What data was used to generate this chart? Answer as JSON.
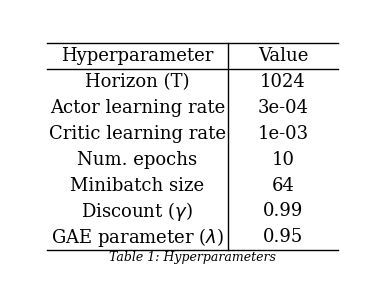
{
  "col_headers": [
    "Hyperparameter",
    "Value"
  ],
  "rows": [
    [
      "Horizon (T)",
      "1024"
    ],
    [
      "Actor learning rate",
      "3e-04"
    ],
    [
      "Critic learning rate",
      "1e-03"
    ],
    [
      "Num. epochs",
      "10"
    ],
    [
      "Minibatch size",
      "64"
    ],
    [
      "Discount ($\\gamma$)",
      "0.99"
    ],
    [
      "GAE parameter ($\\lambda$)",
      "0.95"
    ]
  ],
  "caption": "Table 1: Hyperparameters",
  "background_color": "#ffffff",
  "text_color": "#000000",
  "header_fontsize": 13,
  "body_fontsize": 13,
  "col_split": 0.62
}
